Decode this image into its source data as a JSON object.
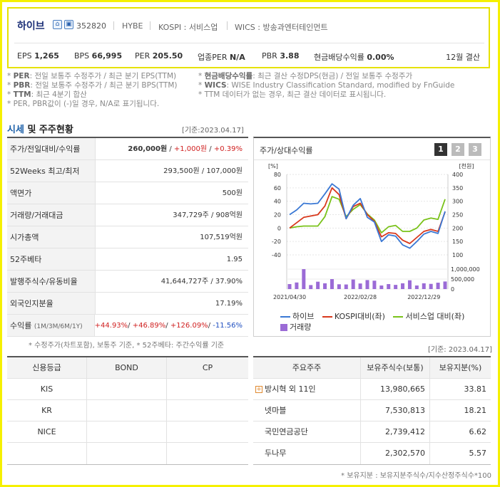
{
  "header": {
    "company": "하이브",
    "code": "352820",
    "eng": "HYBE",
    "market": "KOSPI : 서비스업",
    "wics": "WICS : 방송과엔터테인먼트",
    "metrics": [
      {
        "label": "EPS",
        "value": "1,265"
      },
      {
        "label": "BPS",
        "value": "66,995"
      },
      {
        "label": "PER",
        "value": "205.50"
      },
      {
        "label": "업종PER",
        "value": "N/A"
      },
      {
        "label": "PBR",
        "value": "3.88"
      },
      {
        "label": "현금배당수익률",
        "value": "0.00%"
      }
    ],
    "settle": "12월 결산"
  },
  "notes": [
    {
      "key": "PER",
      "text": ": 전일 보통주 수정주가 / 최근 분기 EPS(TTM)"
    },
    {
      "key": "현금배당수익률",
      "text": ": 최근 결산 수정DPS(현금) / 전일 보통주 수정주가"
    },
    {
      "key": "PBR",
      "text": ": 전일 보통주 수정주가 / 최근 분기 BPS(TTM)"
    },
    {
      "key": "WICS",
      "text": ": WISE Industry Classification Standard, modified by FnGuide"
    },
    {
      "key": "TTM",
      "text": ": 최근 4분기 합산"
    },
    {
      "key": "",
      "text": "TTM 데이터가 없는 경우, 최근 결산 데이터로 표시됩니다."
    },
    {
      "key": "",
      "text": "PER, PBR값이 (-)일 경우, N/A로 표기됩니다."
    }
  ],
  "price_section": {
    "title_a": "시세",
    "title_b": " 및 주주현황",
    "date": "[기준:2023.04.17]",
    "rows": [
      {
        "k": "주가/전일대비/수익률",
        "v": ""
      },
      {
        "k": "52Weeks 최고/최저",
        "v": "293,500원 / 107,000원"
      },
      {
        "k": "액면가",
        "v": "500원"
      },
      {
        "k": "거래량/거래대금",
        "v": "347,729주 / 908억원"
      },
      {
        "k": "시가총액",
        "v": "107,519억원"
      },
      {
        "k": "52주베타",
        "v": "1.95"
      },
      {
        "k": "발행주식수/유동비율",
        "v": "41,644,727주 / 37.90%"
      },
      {
        "k": "외국인지분율",
        "v": "17.19%"
      },
      {
        "k": "수익률",
        "v": ""
      }
    ],
    "price": "260,000원",
    "change": "+1,000원",
    "rate": "+0.39%",
    "ret_period": "(1M/3M/6M/1Y)",
    "returns": [
      "+44.93%",
      "+46.89%",
      "+126.09%",
      "-11.56%"
    ],
    "note": "* 수정주가(차트포함), 보통주 기준, * 52주베타: 주간수익률 기준"
  },
  "chart_panel": {
    "title": "주가/상대수익률",
    "buttons": [
      "1",
      "2",
      "3"
    ],
    "date": "[기준: 2023.04.17]"
  },
  "chart_data": {
    "type": "line",
    "left_unit": "[%]",
    "right_unit": "[천원]",
    "left_ticks": [
      "80",
      "60",
      "40",
      "20",
      "0",
      "-20",
      "-40"
    ],
    "right_ticks": [
      "400",
      "350",
      "300",
      "250",
      "200",
      "150",
      "100"
    ],
    "vol_ticks": [
      "1,000,000",
      "500,000",
      "0"
    ],
    "x_labels": [
      "2021/04/30",
      "2022/02/28",
      "2022/12/29"
    ],
    "ylim_left": [
      -40,
      80
    ],
    "ylim_right": [
      100,
      400
    ],
    "series": [
      {
        "name": "하이브",
        "color": "#3a78d4",
        "values": [
          20,
          27,
          37,
          36,
          37,
          51,
          66,
          58,
          14,
          34,
          44,
          16,
          9,
          -20,
          -10,
          -12,
          -25,
          -30,
          -20,
          -9,
          -5,
          -8,
          25
        ]
      },
      {
        "name": "KOSPI대비(좌)",
        "color": "#d8381c",
        "values": [
          0,
          8,
          16,
          18,
          20,
          33,
          60,
          50,
          14,
          32,
          37,
          20,
          10,
          -13,
          -7,
          -8,
          -18,
          -23,
          -14,
          -5,
          -2,
          -5,
          24
        ]
      },
      {
        "name": "서비스업 대비(좌)",
        "color": "#7ac21a",
        "values": [
          0,
          2,
          3,
          3,
          3,
          17,
          47,
          43,
          17,
          28,
          35,
          21,
          12,
          -7,
          2,
          4,
          -5,
          -5,
          0,
          12,
          15,
          13,
          43
        ]
      },
      {
        "name": "거래량",
        "color": "#9b6bd6",
        "values": [
          250000,
          330000,
          1000000,
          200000,
          370000,
          290000,
          500000,
          240000,
          230000,
          480000,
          280000,
          450000,
          420000,
          180000,
          250000,
          210000,
          290000,
          440000,
          180000,
          290000,
          260000,
          320000,
          380000
        ]
      }
    ]
  },
  "credit": {
    "headers": [
      "신용등급",
      "BOND",
      "CP"
    ],
    "rows": [
      [
        "KIS",
        "",
        ""
      ],
      [
        "KR",
        "",
        ""
      ],
      [
        "NICE",
        "",
        ""
      ],
      [
        "",
        "",
        ""
      ]
    ]
  },
  "shareholders": {
    "headers": [
      "주요주주",
      "보유주식수(보통)",
      "보유지분(%)"
    ],
    "rows": [
      {
        "name": "방시혁 외 11인",
        "shares": "13,980,665",
        "pct": "33.81",
        "expand": true
      },
      {
        "name": "넷마블",
        "shares": "7,530,813",
        "pct": "18.21"
      },
      {
        "name": "국민연금공단",
        "shares": "2,739,412",
        "pct": "6.62"
      },
      {
        "name": "두나무",
        "shares": "2,302,570",
        "pct": "5.57"
      }
    ],
    "note": "* 보유지분 : 보유지분주식수/지수산정주식수*100"
  }
}
